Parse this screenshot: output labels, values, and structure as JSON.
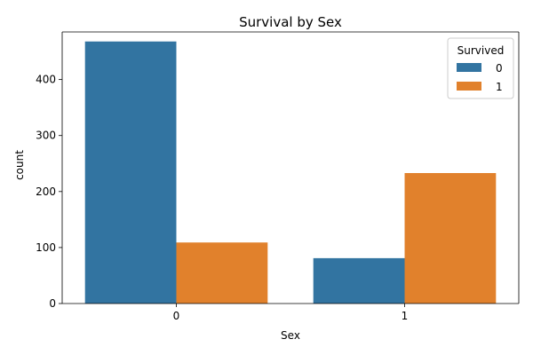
{
  "chart_data": {
    "type": "bar",
    "title": "Survival by Sex",
    "xlabel": "Sex",
    "ylabel": "count",
    "categories": [
      "0",
      "1"
    ],
    "series": [
      {
        "name": "0",
        "values": [
          468,
          81
        ],
        "color": "#3274a1"
      },
      {
        "name": "1",
        "values": [
          109,
          233
        ],
        "color": "#e1812c"
      }
    ],
    "ylim": [
      0,
      485
    ],
    "yticks": [
      0,
      100,
      200,
      300,
      400
    ],
    "legend": {
      "title": "Survived",
      "placement": "top-right"
    },
    "grid": false
  }
}
